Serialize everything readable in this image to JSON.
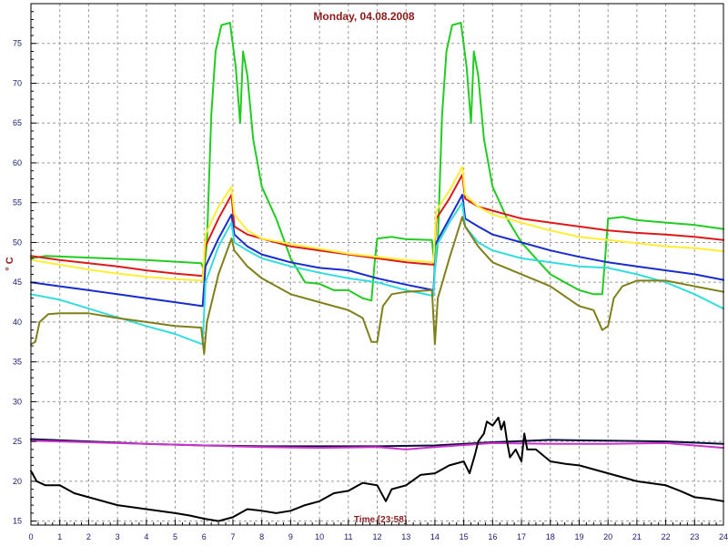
{
  "chart_data": {
    "type": "line",
    "title": "Monday, 04.08.2008",
    "xlabel": "Time [23:58]",
    "ylabel": "° C",
    "xlim": [
      0,
      24
    ],
    "ylim": [
      14.5,
      80
    ],
    "x_ticks": [
      "0",
      "1",
      "2",
      "3",
      "4",
      "5",
      "6",
      "7",
      "8",
      "9",
      "10",
      "11",
      "12",
      "13",
      "14",
      "15",
      "16",
      "17",
      "18",
      "19",
      "20",
      "21",
      "22",
      "23",
      "24"
    ],
    "y_ticks": [
      "15",
      "20",
      "25",
      "30",
      "35",
      "40",
      "45",
      "50",
      "55",
      "60",
      "65",
      "70",
      "75"
    ],
    "grid": true,
    "series": [
      {
        "color": "#22cc22",
        "points": [
          [
            0,
            48
          ],
          [
            0.5,
            48.3
          ],
          [
            2,
            48.1
          ],
          [
            4,
            47.8
          ],
          [
            5.9,
            47.4
          ],
          [
            6,
            46.5
          ],
          [
            6.1,
            50
          ],
          [
            6.25,
            66
          ],
          [
            6.4,
            74
          ],
          [
            6.6,
            77.3
          ],
          [
            6.9,
            77.6
          ],
          [
            7.1,
            72
          ],
          [
            7.25,
            65
          ],
          [
            7.35,
            74
          ],
          [
            7.5,
            71
          ],
          [
            7.7,
            63
          ],
          [
            8,
            57
          ],
          [
            8.5,
            53
          ],
          [
            9,
            48
          ],
          [
            9.5,
            45
          ],
          [
            10,
            44.8
          ],
          [
            10.5,
            44
          ],
          [
            11,
            44
          ],
          [
            11.5,
            43
          ],
          [
            11.8,
            42.7
          ],
          [
            11.9,
            47
          ],
          [
            12,
            50.5
          ],
          [
            12.5,
            50.7
          ],
          [
            13,
            50.4
          ],
          [
            13.9,
            50.3
          ],
          [
            14,
            46.5
          ],
          [
            14.1,
            50
          ],
          [
            14.25,
            66
          ],
          [
            14.4,
            74
          ],
          [
            14.6,
            77.3
          ],
          [
            14.9,
            77.6
          ],
          [
            15.1,
            72
          ],
          [
            15.25,
            65
          ],
          [
            15.35,
            74
          ],
          [
            15.5,
            71
          ],
          [
            15.7,
            63
          ],
          [
            16,
            57
          ],
          [
            16.5,
            53
          ],
          [
            17,
            50
          ],
          [
            17.5,
            48
          ],
          [
            18,
            46
          ],
          [
            18.5,
            45
          ],
          [
            19,
            44
          ],
          [
            19.5,
            43.5
          ],
          [
            19.8,
            43.5
          ],
          [
            19.9,
            48
          ],
          [
            20,
            53
          ],
          [
            20.5,
            53.2
          ],
          [
            21,
            52.8
          ],
          [
            22,
            52.5
          ],
          [
            23,
            52.2
          ],
          [
            24,
            51.7
          ]
        ]
      },
      {
        "color": "#dd1a1a",
        "points": [
          [
            0,
            48.3
          ],
          [
            1,
            47.8
          ],
          [
            2,
            47.4
          ],
          [
            3,
            47
          ],
          [
            4,
            46.5
          ],
          [
            5,
            46.1
          ],
          [
            5.95,
            45.8
          ],
          [
            6.05,
            49.5
          ],
          [
            6.5,
            53
          ],
          [
            6.95,
            56
          ],
          [
            7.05,
            52
          ],
          [
            7.5,
            51
          ],
          [
            8,
            50.5
          ],
          [
            9,
            49.5
          ],
          [
            10,
            49
          ],
          [
            11,
            48.5
          ],
          [
            12,
            48
          ],
          [
            13,
            47.5
          ],
          [
            13.95,
            47.2
          ],
          [
            14.05,
            53
          ],
          [
            14.5,
            55.5
          ],
          [
            14.95,
            58.5
          ],
          [
            15.05,
            55.5
          ],
          [
            15.5,
            54.5
          ],
          [
            16,
            54
          ],
          [
            17,
            53
          ],
          [
            18,
            52.5
          ],
          [
            19,
            52
          ],
          [
            20,
            51.5
          ],
          [
            21,
            51.2
          ],
          [
            22,
            51
          ],
          [
            23,
            50.7
          ],
          [
            24,
            50.3
          ]
        ]
      },
      {
        "color": "#ffee33",
        "points": [
          [
            0,
            47.8
          ],
          [
            1,
            47.2
          ],
          [
            2,
            46.6
          ],
          [
            3,
            46.1
          ],
          [
            4,
            45.7
          ],
          [
            5,
            45.4
          ],
          [
            5.95,
            45.2
          ],
          [
            6.05,
            51
          ],
          [
            6.5,
            54.5
          ],
          [
            6.95,
            57
          ],
          [
            7.05,
            53.5
          ],
          [
            7.5,
            51.5
          ],
          [
            8,
            50.5
          ],
          [
            9,
            49.8
          ],
          [
            10,
            49.2
          ],
          [
            11,
            48.6
          ],
          [
            12,
            48.2
          ],
          [
            13,
            47.8
          ],
          [
            13.95,
            47.5
          ],
          [
            14.05,
            54
          ],
          [
            14.5,
            56.5
          ],
          [
            14.95,
            59.5
          ],
          [
            15.05,
            56
          ],
          [
            15.5,
            54.5
          ],
          [
            16,
            53.5
          ],
          [
            17,
            52.5
          ],
          [
            18,
            51.5
          ],
          [
            19,
            50.7
          ],
          [
            20,
            50.3
          ],
          [
            21,
            49.9
          ],
          [
            22,
            49.5
          ],
          [
            23,
            49.3
          ],
          [
            24,
            48.9
          ]
        ]
      },
      {
        "color": "#1a2ccc",
        "points": [
          [
            0,
            45
          ],
          [
            1,
            44.5
          ],
          [
            2,
            44
          ],
          [
            3,
            43.5
          ],
          [
            4,
            43
          ],
          [
            5,
            42.5
          ],
          [
            5.95,
            42
          ],
          [
            6.05,
            47
          ],
          [
            6.5,
            50.5
          ],
          [
            6.95,
            53.5
          ],
          [
            7.05,
            51
          ],
          [
            7.5,
            49.5
          ],
          [
            8,
            48.5
          ],
          [
            9,
            47.5
          ],
          [
            10,
            46.8
          ],
          [
            11,
            46.5
          ],
          [
            12,
            45.5
          ],
          [
            13,
            44.7
          ],
          [
            13.95,
            44
          ],
          [
            14.05,
            50
          ],
          [
            14.5,
            53
          ],
          [
            14.95,
            56
          ],
          [
            15.05,
            53
          ],
          [
            15.5,
            52
          ],
          [
            16,
            51
          ],
          [
            17,
            50
          ],
          [
            18,
            49
          ],
          [
            19,
            48.2
          ],
          [
            20,
            47.5
          ],
          [
            21,
            47
          ],
          [
            22,
            46.5
          ],
          [
            23,
            46
          ],
          [
            24,
            45.3
          ]
        ]
      },
      {
        "color": "#33dddd",
        "points": [
          [
            0,
            43.5
          ],
          [
            1,
            42.8
          ],
          [
            2,
            41.7
          ],
          [
            3,
            40.6
          ],
          [
            4,
            39.5
          ],
          [
            5,
            38.5
          ],
          [
            5.95,
            37.2
          ],
          [
            6.05,
            45
          ],
          [
            6.5,
            49.5
          ],
          [
            6.95,
            52.5
          ],
          [
            7.05,
            50
          ],
          [
            7.5,
            49
          ],
          [
            8,
            48
          ],
          [
            9,
            47
          ],
          [
            10,
            46.2
          ],
          [
            11,
            45.5
          ],
          [
            12,
            45
          ],
          [
            13,
            44
          ],
          [
            13.95,
            43.3
          ],
          [
            14.05,
            49.5
          ],
          [
            14.5,
            52.5
          ],
          [
            14.95,
            55
          ],
          [
            15.05,
            52
          ],
          [
            15.5,
            50
          ],
          [
            16,
            49
          ],
          [
            17,
            48
          ],
          [
            18,
            47.5
          ],
          [
            19,
            47
          ],
          [
            20,
            46.8
          ],
          [
            21,
            46
          ],
          [
            22,
            45
          ],
          [
            23,
            43.5
          ],
          [
            24,
            41.7
          ]
        ]
      },
      {
        "color": "#80801a",
        "points": [
          [
            0,
            37.2
          ],
          [
            0.15,
            37.5
          ],
          [
            0.3,
            40
          ],
          [
            0.6,
            41
          ],
          [
            1,
            41.1
          ],
          [
            2,
            41.1
          ],
          [
            3,
            40.5
          ],
          [
            4,
            40
          ],
          [
            5,
            39.5
          ],
          [
            5.9,
            39.3
          ],
          [
            6,
            36
          ],
          [
            6.1,
            40
          ],
          [
            6.5,
            46
          ],
          [
            6.95,
            50.5
          ],
          [
            7.05,
            49
          ],
          [
            7.5,
            47
          ],
          [
            8,
            45.5
          ],
          [
            9,
            43.5
          ],
          [
            10,
            42.5
          ],
          [
            11,
            41.5
          ],
          [
            11.5,
            40.5
          ],
          [
            11.8,
            37.5
          ],
          [
            12,
            37.5
          ],
          [
            12.2,
            42
          ],
          [
            12.5,
            43.5
          ],
          [
            13,
            43.8
          ],
          [
            13.9,
            44
          ],
          [
            14,
            37.2
          ],
          [
            14.1,
            43
          ],
          [
            14.5,
            48
          ],
          [
            14.95,
            53.2
          ],
          [
            15.05,
            52
          ],
          [
            15.5,
            49.5
          ],
          [
            16,
            47.5
          ],
          [
            17,
            46
          ],
          [
            18,
            44.5
          ],
          [
            19,
            42
          ],
          [
            19.5,
            41.5
          ],
          [
            19.8,
            39
          ],
          [
            20,
            39.5
          ],
          [
            20.2,
            43
          ],
          [
            20.5,
            44.5
          ],
          [
            21,
            45.2
          ],
          [
            22,
            45.2
          ],
          [
            23,
            44.5
          ],
          [
            24,
            43.8
          ]
        ]
      },
      {
        "color": "#0d0d3a",
        "points": [
          [
            0,
            25.3
          ],
          [
            2,
            25
          ],
          [
            4,
            24.7
          ],
          [
            6,
            24.5
          ],
          [
            8,
            24.4
          ],
          [
            10,
            24.4
          ],
          [
            12,
            24.4
          ],
          [
            14,
            24.5
          ],
          [
            16,
            24.9
          ],
          [
            18,
            25.2
          ],
          [
            20,
            25.1
          ],
          [
            22,
            25
          ],
          [
            24,
            24.7
          ]
        ]
      },
      {
        "color": "#cc33cc",
        "points": [
          [
            0,
            25.1
          ],
          [
            2,
            24.9
          ],
          [
            4,
            24.7
          ],
          [
            6,
            24.5
          ],
          [
            8,
            24.3
          ],
          [
            10,
            24.2
          ],
          [
            12,
            24.3
          ],
          [
            13,
            24
          ],
          [
            14,
            24.3
          ],
          [
            16,
            24.8
          ],
          [
            18,
            24.7
          ],
          [
            20,
            24.7
          ],
          [
            22,
            24.8
          ],
          [
            24,
            24.2
          ]
        ]
      },
      {
        "color": "#000000",
        "points": [
          [
            0,
            21.3
          ],
          [
            0.2,
            20
          ],
          [
            0.5,
            19.5
          ],
          [
            1,
            19.5
          ],
          [
            1.5,
            18.5
          ],
          [
            2,
            18
          ],
          [
            3,
            17
          ],
          [
            4,
            16.5
          ],
          [
            5,
            16
          ],
          [
            5.5,
            15.7
          ],
          [
            6,
            15.3
          ],
          [
            6.5,
            15
          ],
          [
            7,
            15.5
          ],
          [
            7.5,
            16.5
          ],
          [
            8,
            16.3
          ],
          [
            8.5,
            16
          ],
          [
            9,
            16.3
          ],
          [
            9.5,
            17
          ],
          [
            10,
            17.5
          ],
          [
            10.5,
            18.5
          ],
          [
            11,
            18.8
          ],
          [
            11.5,
            19.8
          ],
          [
            12,
            19.5
          ],
          [
            12.3,
            17.5
          ],
          [
            12.5,
            19
          ],
          [
            13,
            19.5
          ],
          [
            13.5,
            20.8
          ],
          [
            14,
            21
          ],
          [
            14.5,
            22
          ],
          [
            15,
            22.5
          ],
          [
            15.2,
            21
          ],
          [
            15.4,
            23.5
          ],
          [
            15.5,
            25
          ],
          [
            15.7,
            26
          ],
          [
            15.8,
            27.5
          ],
          [
            16,
            27
          ],
          [
            16.2,
            28
          ],
          [
            16.3,
            26.5
          ],
          [
            16.4,
            27.5
          ],
          [
            16.5,
            25
          ],
          [
            16.6,
            23
          ],
          [
            16.8,
            24
          ],
          [
            17,
            22.5
          ],
          [
            17.1,
            26
          ],
          [
            17.2,
            24
          ],
          [
            17.5,
            24
          ],
          [
            18,
            22.5
          ],
          [
            18.5,
            22.2
          ],
          [
            19,
            22
          ],
          [
            20,
            21
          ],
          [
            21,
            20
          ],
          [
            22,
            19.5
          ],
          [
            22.5,
            18.8
          ],
          [
            23,
            18
          ],
          [
            23.5,
            17.8
          ],
          [
            24,
            17.5
          ]
        ]
      }
    ]
  }
}
